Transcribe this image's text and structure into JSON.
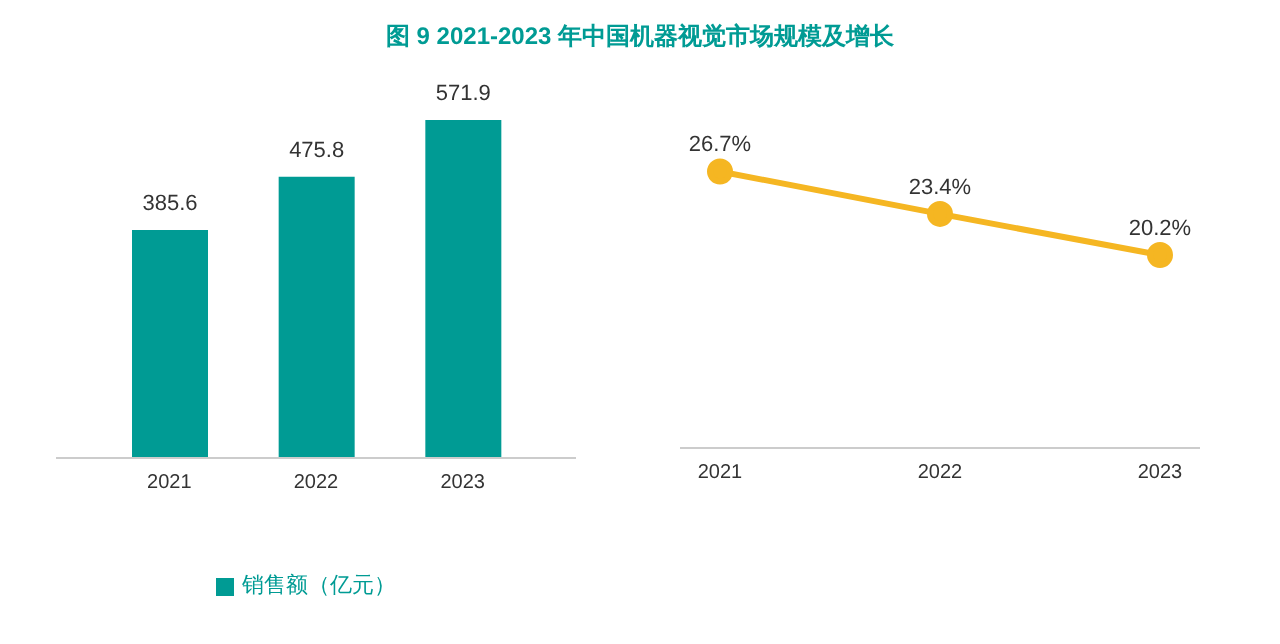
{
  "chart_data": [
    {
      "type": "bar",
      "title": "图 9   2021-2023 年中国机器视觉市场规模及增长",
      "categories": [
        "2021",
        "2022",
        "2023"
      ],
      "series": [
        {
          "name": "销售额（亿元）",
          "color": "#009b94",
          "values": [
            385.6,
            475.8,
            571.9
          ]
        }
      ],
      "data_labels": true,
      "legend": "bottom",
      "grid": false
    },
    {
      "type": "line",
      "categories": [
        "2021",
        "2022",
        "2023"
      ],
      "series": [
        {
          "color": "#f5b622",
          "values": [
            26.7,
            23.4,
            20.2
          ],
          "value_labels": [
            "26.7%",
            "23.4%",
            "20.2%"
          ]
        }
      ],
      "marker": "circle",
      "legend": false,
      "grid": false
    }
  ]
}
